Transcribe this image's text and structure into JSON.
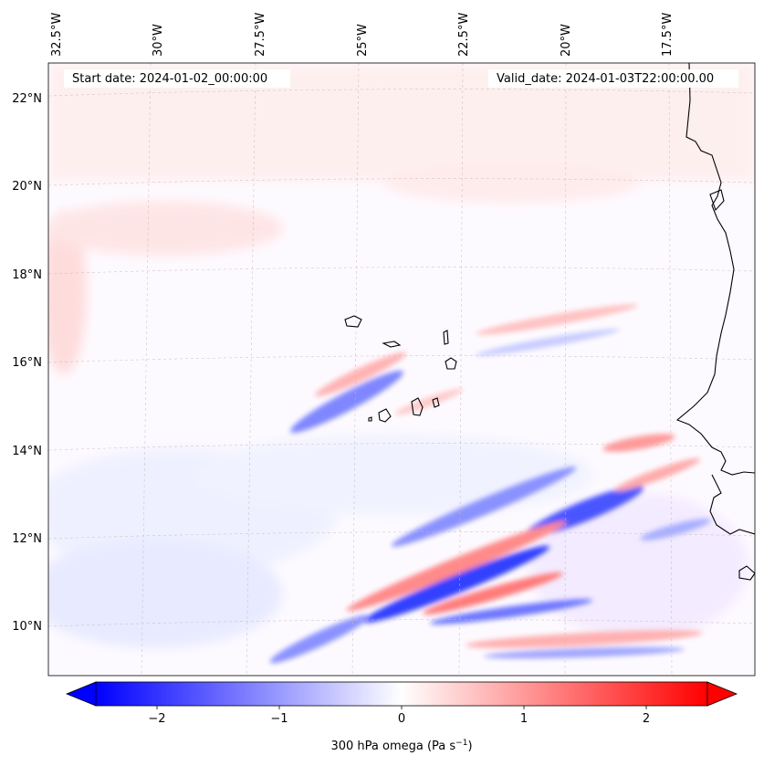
{
  "map": {
    "start_label": "Start date: 2024-01-02_00:00:00",
    "valid_label": "Valid_date: 2024-01-03T22:00:00.00",
    "lon_labels": [
      "32.5°W",
      "30°W",
      "27.5°W",
      "25°W",
      "22.5°W",
      "20°W",
      "17.5°W"
    ],
    "lat_labels": [
      "22°N",
      "20°N",
      "18°N",
      "16°N",
      "14°N",
      "12°N",
      "10°N"
    ],
    "colors": {
      "negative": "#0000ff",
      "positive": "#ff0000",
      "neutral": "#ffffff",
      "coastline": "#000000",
      "gridline": "#c9b8b8"
    }
  },
  "colorbar": {
    "label_main": "300 hPa omega (Pa s",
    "label_exp": "−1",
    "label_close": ")",
    "ticks": [
      "−2",
      "−1",
      "0",
      "1",
      "2"
    ],
    "tick_values": [
      -2,
      -1,
      0,
      1,
      2
    ],
    "vmin": -2.5,
    "vmax": 2.5,
    "extend": "both"
  }
}
